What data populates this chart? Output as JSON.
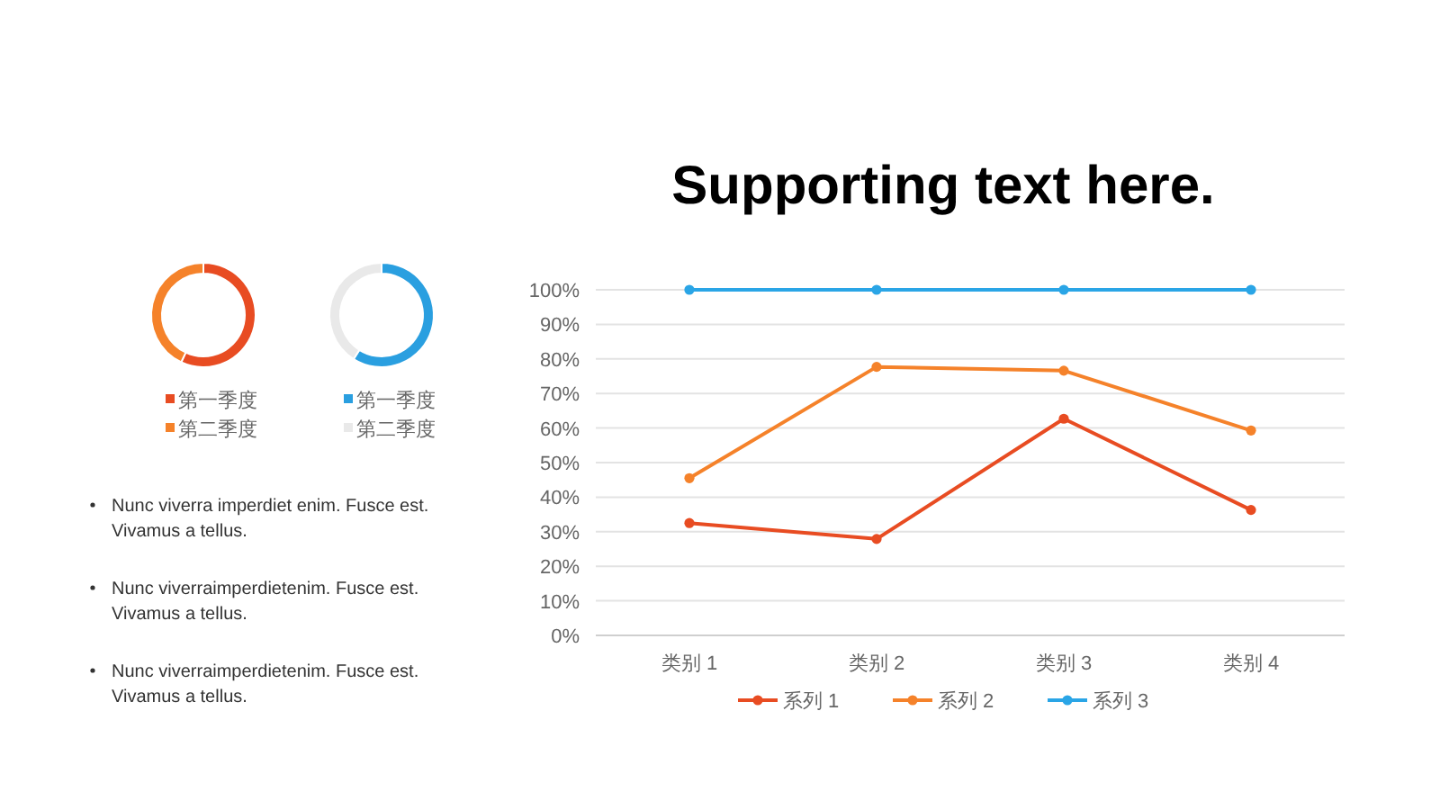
{
  "chart_data": [
    {
      "type": "donut",
      "categories": [
        "第一季度",
        "第二季度"
      ],
      "values": [
        57,
        43
      ],
      "colors": [
        "#e84c22",
        "#f5822a"
      ],
      "legend": "bottom"
    },
    {
      "type": "donut",
      "categories": [
        "第一季度",
        "第二季度"
      ],
      "values": [
        59,
        41
      ],
      "colors": [
        "#2a9fe0",
        "#e9e9e9"
      ],
      "legend": "bottom"
    },
    {
      "type": "line",
      "title": "Supporting text here.",
      "categories": [
        "类别 1",
        "类别 2",
        "类别 3",
        "类别 4"
      ],
      "ylim": [
        0,
        100
      ],
      "yticks": [
        {
          "value": 0,
          "label": "0%"
        },
        {
          "value": 10,
          "label": "10%"
        },
        {
          "value": 20,
          "label": "20%"
        },
        {
          "value": 30,
          "label": "30%"
        },
        {
          "value": 40,
          "label": "40%"
        },
        {
          "value": 50,
          "label": "50%"
        },
        {
          "value": 60,
          "label": "60%"
        },
        {
          "value": 70,
          "label": "70%"
        },
        {
          "value": 80,
          "label": "80%"
        },
        {
          "value": 90,
          "label": "90%"
        },
        {
          "value": 100,
          "label": "100%"
        }
      ],
      "grid": "y",
      "legend": "bottom",
      "marker": "circle",
      "line_style": "solid",
      "series": [
        {
          "name": "系列 1",
          "color": "#e84c22",
          "values": [
            32.5,
            27.9,
            62.7,
            36.3
          ]
        },
        {
          "name": "系列 2",
          "color": "#f5822a",
          "values": [
            45.5,
            77.7,
            76.6,
            59.3
          ]
        },
        {
          "name": "系列 3",
          "color": "#2aa5e6",
          "values": [
            100,
            100,
            100,
            100
          ]
        }
      ]
    },
    {
      "type": "other",
      "annotations": [
        "Nunc viverra imperdiet enim. Fusce est. Vivamus a tellus.",
        "Nunc viverraimperdietenim. Fusce est. Vivamus a tellus.",
        "Nunc viverraimperdietenim. Fusce est. Vivamus a tellus."
      ]
    }
  ]
}
